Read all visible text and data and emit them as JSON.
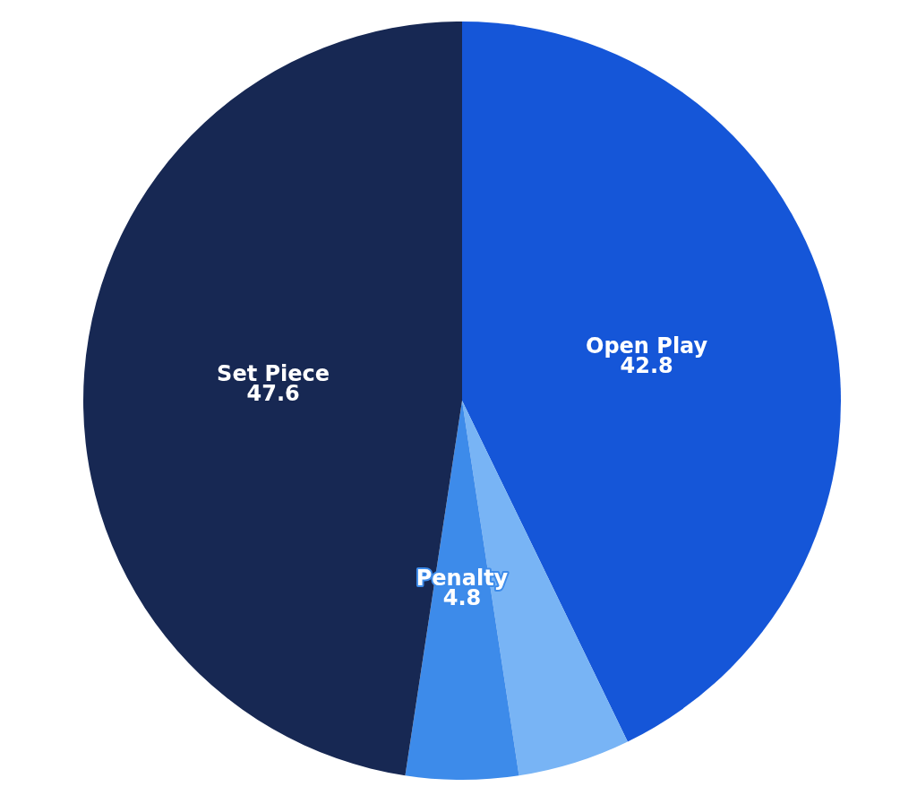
{
  "chart_data": {
    "type": "pie",
    "categories": [
      "Open Play",
      null,
      "Penalty",
      "Set Piece"
    ],
    "values": [
      42.8,
      4.8,
      4.8,
      47.6
    ],
    "colors": [
      "#1556d8",
      "#78b4f5",
      "#3d8bea",
      "#172853"
    ],
    "value_labels": [
      "42.8",
      null,
      "4.8",
      "47.6"
    ],
    "legend": false
  }
}
